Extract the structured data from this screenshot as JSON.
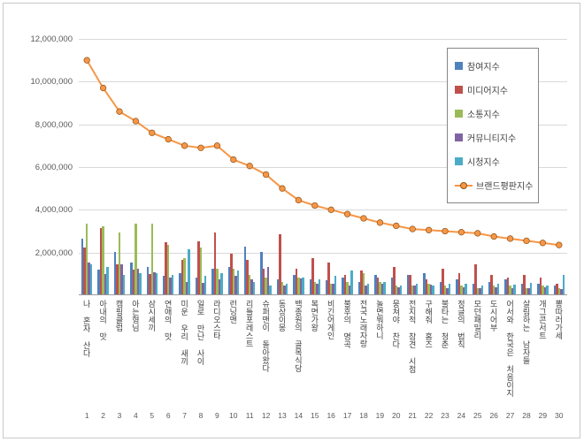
{
  "chart_data": {
    "type": "bar",
    "subtype": "grouped-bars-with-line",
    "title": "",
    "categories": [
      "나 혼자 산다",
      "아내의 맛",
      "캠핑클럽",
      "아는형님",
      "삼시세끼",
      "연애의 맛",
      "미운 우리 새끼",
      "일로 만난 사이",
      "라디오스타",
      "런닝맨",
      "리틀포레스트",
      "슈퍼맨이 돌아왔다",
      "동상이몽",
      "백종원의 골목식당",
      "복면가왕",
      "비긴어게인",
      "불후의 명곡",
      "전국노래자랑",
      "놀면뭐하니",
      "뭉쳐야 찬다",
      "전지적 참견 시점",
      "구해줘 홈즈",
      "불타는 청춘",
      "정글의 법칙",
      "모던패밀리",
      "도시어부",
      "어서와 한국은 처음이지",
      "살림하는 남자들",
      "개그콘서트",
      "뽕따러가세"
    ],
    "index_labels": [
      "1",
      "2",
      "3",
      "4",
      "5",
      "6",
      "7",
      "8",
      "9",
      "10",
      "11",
      "12",
      "13",
      "14",
      "15",
      "16",
      "17",
      "18",
      "19",
      "20",
      "21",
      "22",
      "23",
      "24",
      "25",
      "26",
      "27",
      "28",
      "29",
      "30"
    ],
    "bar_series": [
      {
        "name": "참여지수",
        "color": "#4F81BD",
        "values": [
          2600000,
          1150000,
          2000000,
          1500000,
          1300000,
          850000,
          1000000,
          800000,
          1200000,
          1300000,
          2250000,
          2000000,
          700000,
          900000,
          700000,
          650000,
          800000,
          600000,
          900000,
          800000,
          900000,
          1000000,
          600000,
          700000,
          500000,
          600000,
          700000,
          500000,
          500000,
          400000
        ]
      },
      {
        "name": "미디어지수",
        "color": "#C0504D",
        "values": [
          2200000,
          3100000,
          1400000,
          1150000,
          950000,
          2450000,
          1600000,
          2500000,
          2900000,
          1900000,
          1600000,
          1200000,
          2800000,
          1200000,
          1700000,
          1500000,
          900000,
          1100000,
          800000,
          1300000,
          900000,
          700000,
          1200000,
          1000000,
          1400000,
          900000,
          800000,
          900000,
          800000,
          500000
        ]
      },
      {
        "name": "소통지수",
        "color": "#9BBB59",
        "values": [
          3300000,
          3200000,
          2900000,
          3300000,
          3300000,
          2300000,
          1700000,
          2200000,
          1200000,
          1200000,
          900000,
          800000,
          600000,
          800000,
          600000,
          500000,
          600000,
          1000000,
          600000,
          400000,
          400000,
          500000,
          400000,
          400000,
          300000,
          400000,
          400000,
          300000,
          400000,
          300000
        ]
      },
      {
        "name": "커뮤니티지수",
        "color": "#8064A2",
        "values": [
          1500000,
          950000,
          1400000,
          1200000,
          1050000,
          800000,
          600000,
          550000,
          700000,
          850000,
          700000,
          1300000,
          400000,
          750000,
          500000,
          500000,
          400000,
          400000,
          500000,
          350000,
          400000,
          450000,
          300000,
          350000,
          300000,
          350000,
          300000,
          300000,
          350000,
          250000
        ]
      },
      {
        "name": "시청지수",
        "color": "#4BACC6",
        "values": [
          1400000,
          1300000,
          900000,
          1000000,
          1000000,
          900000,
          2100000,
          850000,
          1000000,
          1100000,
          600000,
          400000,
          500000,
          800000,
          700000,
          850000,
          1100000,
          500000,
          600000,
          400000,
          500000,
          400000,
          500000,
          500000,
          400000,
          500000,
          450000,
          550000,
          400000,
          900000
        ]
      }
    ],
    "line_series": {
      "name": "브랜드평판지수",
      "color": "#F79646",
      "values": [
        11000000,
        9700000,
        8600000,
        8150000,
        7600000,
        7300000,
        7000000,
        6900000,
        7000000,
        6350000,
        6050000,
        5650000,
        5000000,
        4450000,
        4200000,
        4000000,
        3800000,
        3600000,
        3400000,
        3250000,
        3100000,
        3050000,
        3000000,
        2950000,
        2900000,
        2750000,
        2650000,
        2550000,
        2450000,
        2350000
      ]
    },
    "ylim": [
      0,
      12000000
    ],
    "ytick_step": 2000000,
    "ytick_labels": [
      "12,000,000",
      "10,000,000",
      "8,000,000",
      "6,000,000",
      "4,000,000",
      "2,000,000"
    ],
    "grid": true,
    "legend_position": "upper-right",
    "colors": {
      "gridline": "#d9d9d9",
      "axis_text": "#595959",
      "marker_stroke": "#8c5418"
    }
  }
}
